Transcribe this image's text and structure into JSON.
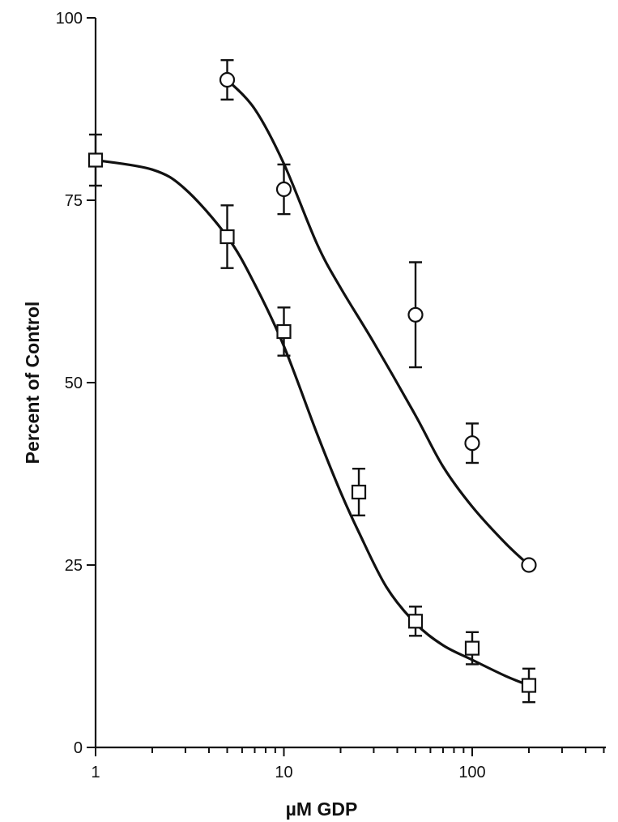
{
  "chart_data": {
    "type": "scatter",
    "title": "",
    "xlabel": "µM GDP",
    "ylabel": "Percent of Control",
    "x_scale": "log",
    "xlim": [
      1,
      500
    ],
    "ylim": [
      0,
      100
    ],
    "x_ticks": [
      {
        "value": 1,
        "label": "1"
      },
      {
        "value": 10,
        "label": "10"
      },
      {
        "value": 100,
        "label": "100"
      }
    ],
    "y_ticks": [
      {
        "value": 0,
        "label": "0"
      },
      {
        "value": 25,
        "label": "25"
      },
      {
        "value": 50,
        "label": "50"
      },
      {
        "value": 75,
        "label": "75"
      },
      {
        "value": 100,
        "label": "100"
      }
    ],
    "grid": false,
    "series": [
      {
        "marker": "square",
        "points": [
          {
            "x": 1,
            "y": 80.5,
            "err": 3.5
          },
          {
            "x": 5,
            "y": 70,
            "err": 4.3
          },
          {
            "x": 10,
            "y": 57,
            "err": 3.3
          },
          {
            "x": 25,
            "y": 35,
            "err": 3.2
          },
          {
            "x": 50,
            "y": 17.3,
            "err": 2.0
          },
          {
            "x": 100,
            "y": 13.6,
            "err": 2.2
          },
          {
            "x": 200,
            "y": 8.5,
            "err": 2.3
          }
        ],
        "fit_curve": [
          [
            1,
            80.5
          ],
          [
            2,
            79.2
          ],
          [
            3,
            76.5
          ],
          [
            5,
            70
          ],
          [
            7,
            63.5
          ],
          [
            10,
            55
          ],
          [
            15,
            43
          ],
          [
            20,
            35
          ],
          [
            25,
            29.5
          ],
          [
            35,
            22
          ],
          [
            50,
            17
          ],
          [
            70,
            14
          ],
          [
            100,
            12
          ],
          [
            150,
            9.8
          ],
          [
            200,
            8.5
          ]
        ]
      },
      {
        "marker": "circle",
        "points": [
          {
            "x": 5,
            "y": 91.5,
            "err": 2.7
          },
          {
            "x": 10,
            "y": 76.5,
            "err": 3.4
          },
          {
            "x": 50,
            "y": 59.3,
            "err": 7.2
          },
          {
            "x": 100,
            "y": 41.7,
            "err": 2.7
          },
          {
            "x": 200,
            "y": 25,
            "err": 0
          }
        ],
        "fit_curve": [
          [
            5,
            91.5
          ],
          [
            7,
            87.5
          ],
          [
            10,
            80
          ],
          [
            15,
            69
          ],
          [
            20,
            63
          ],
          [
            30,
            55.5
          ],
          [
            50,
            45.5
          ],
          [
            70,
            38.5
          ],
          [
            100,
            33
          ],
          [
            150,
            28
          ],
          [
            200,
            25
          ]
        ]
      }
    ]
  }
}
